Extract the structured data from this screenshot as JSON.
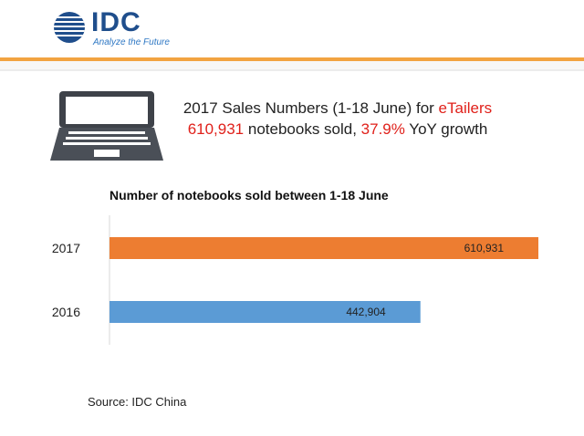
{
  "logo": {
    "name": "IDC",
    "tagline": "Analyze the Future"
  },
  "headline": {
    "line1_prefix": "2017 Sales Numbers (1-18 June) for ",
    "line1_highlight": "eTailers",
    "line2_count": "610,931",
    "line2_mid": " notebooks sold, ",
    "line2_growth": "37.9%",
    "line2_suffix": " YoY growth"
  },
  "chart_data": {
    "type": "bar",
    "orientation": "horizontal",
    "title": "Number of notebooks sold between 1-18 June",
    "categories": [
      "2017",
      "2016"
    ],
    "values": [
      610931,
      442904
    ],
    "value_labels": [
      "610,931",
      "442,904"
    ],
    "colors": [
      "#ed7d31",
      "#5b9bd5"
    ],
    "xlim": [
      0,
      610931
    ],
    "xlabel": "",
    "ylabel": "",
    "grid": false
  },
  "source": "Source: IDC China"
}
